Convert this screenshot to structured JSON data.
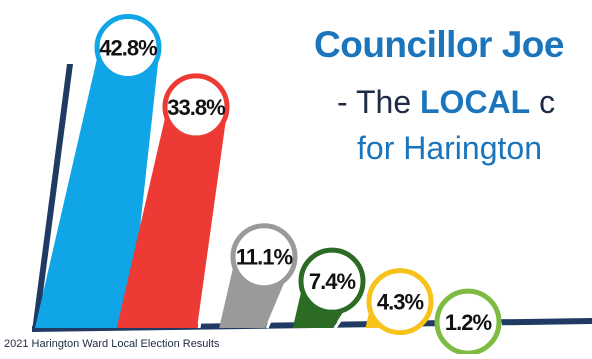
{
  "colors": {
    "headline_blue": "#1a75bc",
    "headline_dark": "#1f2a44",
    "axis": "#1f3a63",
    "label_ring_default": "#999999"
  },
  "title": {
    "line1": "Councillor Joe",
    "line2_prefix": "- The ",
    "line2_emph": "LOCAL",
    "line2_suffix": " c",
    "line3": "for Harington"
  },
  "source": "2021 Harington Ward Local Election Results",
  "chart_data": {
    "type": "bar",
    "values": [
      42.8,
      33.8,
      11.1,
      7.4,
      4.3,
      1.2
    ],
    "labels": [
      "42.8%",
      "33.8%",
      "11.1%",
      "7.4%",
      "4.3%",
      "1.2%"
    ],
    "colors": [
      "#10a5e6",
      "#ee3a35",
      "#9a9a9a",
      "#2c6b24",
      "#f7c21a",
      "#7dbb42"
    ],
    "ylim": [
      0,
      45
    ],
    "grid": false,
    "legend": "none"
  }
}
